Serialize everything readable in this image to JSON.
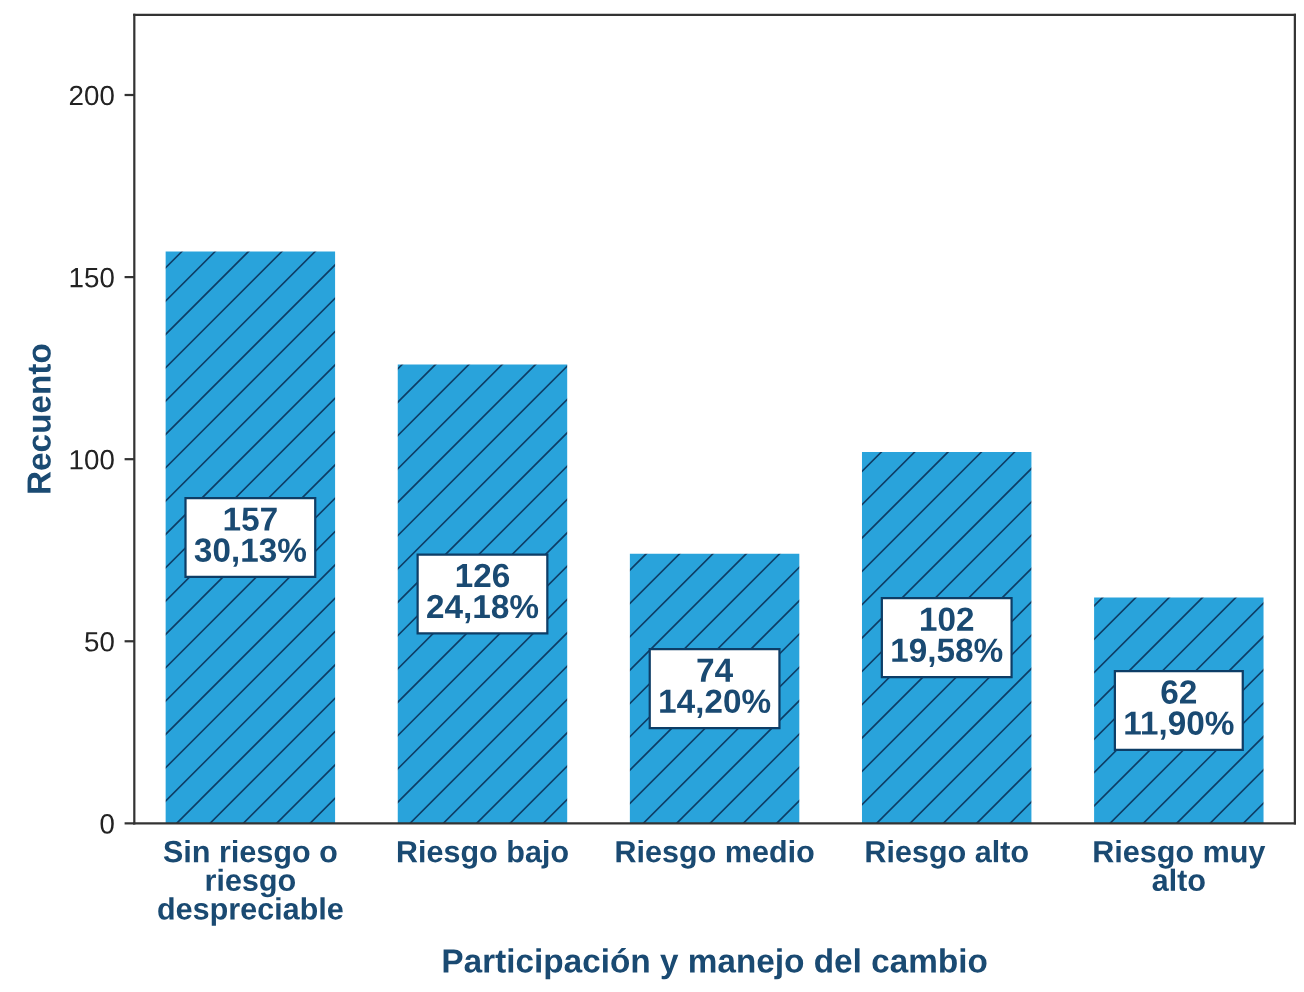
{
  "chart_data": {
    "type": "bar",
    "xlabel": "Participación y manejo del cambio",
    "ylabel": "Recuento",
    "categories": [
      "Sin riesgo o\nriesgo\ndespreciable",
      "Riesgo bajo",
      "Riesgo medio",
      "Riesgo alto",
      "Riesgo muy\nalto"
    ],
    "values": [
      157,
      126,
      74,
      102,
      62
    ],
    "value_labels": [
      "157\n30,13%",
      "126\n24,18%",
      "74\n14,20%",
      "102\n19,58%",
      "62\n11,90%"
    ],
    "color": "#29a3db",
    "ylim": [
      0,
      222
    ],
    "yticks": [
      0,
      50,
      100,
      150,
      200
    ],
    "grid": false
  }
}
